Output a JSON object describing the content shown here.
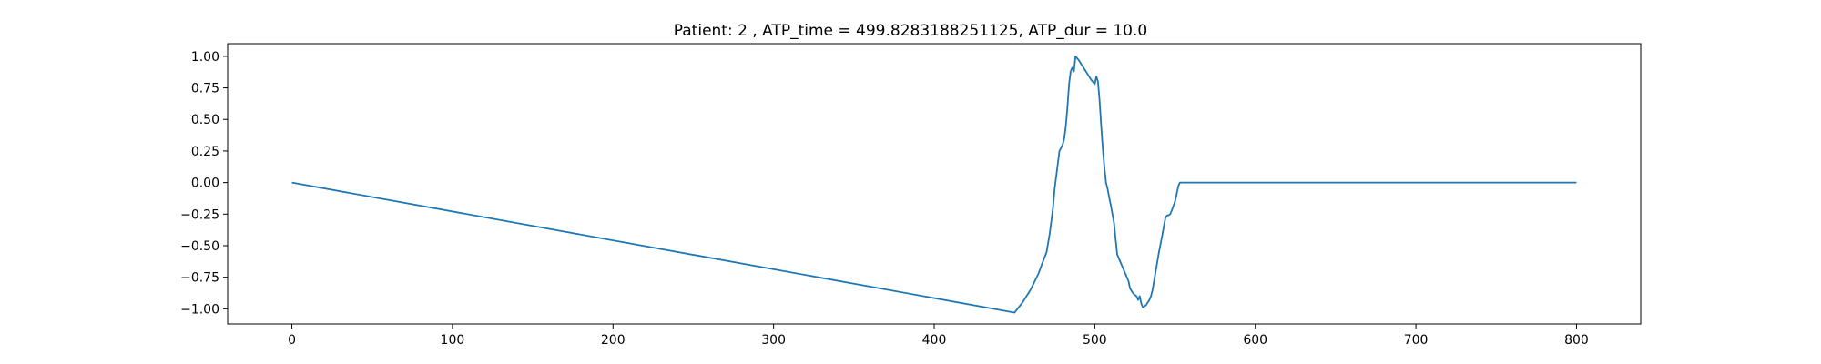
{
  "chart_data": {
    "type": "line",
    "title": "Patient: 2 , ATP_time = 499.8283188251125, ATP_dur = 10.0",
    "xlabel": "",
    "ylabel": "",
    "xlim": [
      -40,
      840
    ],
    "ylim": [
      -1.12,
      1.1
    ],
    "xticks": [
      0,
      100,
      200,
      300,
      400,
      500,
      600,
      700,
      800
    ],
    "xtick_labels": [
      "0",
      "100",
      "200",
      "300",
      "400",
      "500",
      "600",
      "700",
      "800"
    ],
    "yticks": [
      1.0,
      0.75,
      0.5,
      0.25,
      0.0,
      -0.25,
      -0.5,
      -0.75,
      -1.0
    ],
    "ytick_labels": [
      "1.00",
      "0.75",
      "0.50",
      "0.25",
      "0.00",
      "−0.25",
      "−0.50",
      "−0.75",
      "−1.00"
    ],
    "grid": false,
    "series": [
      {
        "color": "#1f77b4",
        "x": [
          0,
          450,
          455,
          460,
          465,
          467,
          470,
          472,
          474,
          475,
          476,
          478,
          480,
          481,
          482,
          483,
          484,
          485,
          486,
          487,
          488,
          490,
          492,
          494,
          496,
          498,
          500,
          501,
          502,
          503,
          504,
          505,
          506,
          507,
          508,
          509,
          510,
          512,
          513,
          514,
          515,
          516,
          517,
          518,
          519,
          520,
          521,
          522,
          524,
          526,
          527,
          528,
          529,
          530,
          531,
          532,
          533,
          534,
          535,
          536,
          538,
          540,
          542,
          544,
          545,
          546,
          547,
          548,
          550,
          552,
          553,
          554,
          555,
          556,
          557,
          800
        ],
        "y": [
          0.0,
          -1.03,
          -0.95,
          -0.85,
          -0.72,
          -0.65,
          -0.55,
          -0.4,
          -0.2,
          -0.05,
          0.05,
          0.25,
          0.3,
          0.35,
          0.45,
          0.6,
          0.78,
          0.88,
          0.91,
          0.88,
          1.0,
          0.97,
          0.93,
          0.89,
          0.85,
          0.81,
          0.78,
          0.84,
          0.8,
          0.65,
          0.45,
          0.27,
          0.12,
          0.0,
          -0.05,
          -0.12,
          -0.18,
          -0.32,
          -0.45,
          -0.57,
          -0.6,
          -0.63,
          -0.66,
          -0.69,
          -0.72,
          -0.75,
          -0.78,
          -0.84,
          -0.88,
          -0.9,
          -0.93,
          -0.9,
          -0.96,
          -0.99,
          -0.98,
          -0.97,
          -0.95,
          -0.93,
          -0.9,
          -0.85,
          -0.7,
          -0.55,
          -0.42,
          -0.28,
          -0.26,
          -0.26,
          -0.25,
          -0.22,
          -0.15,
          -0.03,
          0.0,
          0.0,
          0.0,
          0.0,
          0.0,
          0.0
        ]
      }
    ]
  }
}
